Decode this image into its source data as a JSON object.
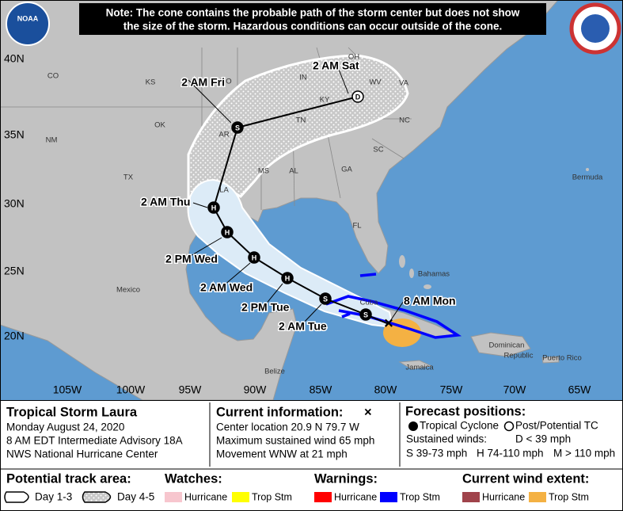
{
  "note_lines": [
    "Note: The cone contains the probable path of the storm center but does not show",
    "the size of the storm. Hazardous conditions can occur outside of the cone."
  ],
  "logo_text": "NOAA",
  "latitude_labels": [
    "40N",
    "35N",
    "30N",
    "25N",
    "20N"
  ],
  "longitude_labels": [
    "105W",
    "100W",
    "95W",
    "90W",
    "85W",
    "80W",
    "75W",
    "70W",
    "65W"
  ],
  "places": [
    "CO",
    "KS",
    "MO",
    "OK",
    "NM",
    "TX",
    "AR",
    "LA",
    "MS",
    "AL",
    "GA",
    "TN",
    "KY",
    "IN",
    "OH",
    "WV",
    "VA",
    "NC",
    "SC",
    "FL",
    "Bermuda",
    "Bahamas",
    "Mexico",
    "Cuba",
    "Belize",
    "Jamaica",
    "Dominican",
    "Republic",
    "Puerto Rico"
  ],
  "forecast_symbols": [
    "D",
    "S",
    "H",
    "H",
    "H",
    "H",
    "S",
    "S"
  ],
  "time_labels": [
    "2 AM Sat",
    "2 AM Fri",
    "2 AM Thu",
    "2 PM Wed",
    "2 AM Wed",
    "2 PM Tue",
    "2 AM Tue",
    "8 AM Mon"
  ],
  "storm": {
    "title": "Tropical Storm Laura",
    "lines": [
      "Monday August 24, 2020",
      "8 AM EDT Intermediate Advisory 18A",
      "NWS National Hurricane Center"
    ]
  },
  "current": {
    "title": "Current information:",
    "symbol": "×",
    "lines": [
      "Center location 20.9 N 79.7 W",
      "Maximum sustained wind 65 mph",
      "Movement WNW at 21 mph"
    ]
  },
  "forecast": {
    "title": "Forecast positions:",
    "tropical": "Tropical Cyclone",
    "post": "Post/Potential TC",
    "winds": "Sustained winds:",
    "d": "D < 39 mph",
    "s": "S 39-73 mph",
    "h": "H 74-110 mph",
    "m": "M > 110 mph"
  },
  "legend": {
    "track": {
      "title": "Potential track area:",
      "day13": "Day 1-3",
      "day45": "Day 4-5"
    },
    "watches": {
      "title": "Watches:",
      "items": [
        {
          "label": "Hurricane",
          "color": "#f7c6ce"
        },
        {
          "label": "Trop Stm",
          "color": "#ffff00"
        }
      ]
    },
    "warnings": {
      "title": "Warnings:",
      "items": [
        {
          "label": "Hurricane",
          "color": "#ff0000"
        },
        {
          "label": "Trop Stm",
          "color": "#0000ff"
        }
      ]
    },
    "wind": {
      "title": "Current wind extent:",
      "items": [
        {
          "label": "Hurricane",
          "color": "#a0434b"
        },
        {
          "label": "Trop Stm",
          "color": "#f4b143"
        }
      ]
    }
  }
}
